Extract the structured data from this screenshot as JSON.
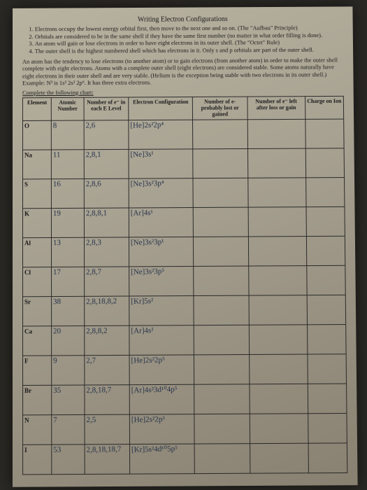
{
  "title": "Writing Electron Configurations",
  "rules": [
    "Electrons occupy the lowest energy orbital first, then move to the next one and so on. (The \"Aufbau\" Principle)",
    "Orbitals are considered to be in the same shell if they have the same first number (no matter in what order filling is done).",
    "An atom will gain or lose electrons in order to have eight electrons in its outer shell. (The \"Octet\" Rule)",
    "The outer shell is the highest numbered shell which has electrons in it. Only s and p orbitals are part of the outer shell."
  ],
  "paragraph": "An atom has the tendency to lose electrons (to another atom) or to gain electrons (from another atom) in order to make the outer shell complete with eight electrons. Atoms with a complete outer shell (eight electrons) are considered stable. Some atoms naturally have eight electrons in their outer shell and are very stable. (Helium is the exception being stable with two electrons in its outer shell.) Example: N³ is 1s² 2s² 2p⁶. It has three extra electrons.",
  "complete": "Complete the following chart:",
  "headers": {
    "element": "Element",
    "atomic": "Atomic Number",
    "num_e": "Number of e⁻ in each E Level",
    "config": "Electron Configuration",
    "lost": "Number of e- probably lost or gained",
    "left": "Number of e⁻ left after loss or gain",
    "charge": "Charge on Ion"
  },
  "rows": [
    {
      "el": "O",
      "at": "8",
      "ne": "2,6",
      "cfg": "[He]2s²2p⁴"
    },
    {
      "el": "Na",
      "at": "11",
      "ne": "2,8,1",
      "cfg": "[Ne]3s¹"
    },
    {
      "el": "S",
      "at": "16",
      "ne": "2,8,6",
      "cfg": "[Ne]3s²3p⁴"
    },
    {
      "el": "K",
      "at": "19",
      "ne": "2,8,8,1",
      "cfg": "[Ar]4s¹"
    },
    {
      "el": "Al",
      "at": "13",
      "ne": "2,8,3",
      "cfg": "[Ne]3s²3p¹"
    },
    {
      "el": "Cl",
      "at": "17",
      "ne": "2,8,7",
      "cfg": "[Ne]3s²3p⁵"
    },
    {
      "el": "Sr",
      "at": "38",
      "ne": "2,8,18,8,2",
      "cfg": "[Kr]5s²"
    },
    {
      "el": "Ca",
      "at": "20",
      "ne": "2,8,8,2",
      "cfg": "[Ar]4s²"
    },
    {
      "el": "F",
      "at": "9",
      "ne": "2,7",
      "cfg": "[He]2s²2p⁵"
    },
    {
      "el": "Br",
      "at": "35",
      "ne": "2,8,18,7",
      "cfg": "[Ar]4s²3d¹⁰4p⁵"
    },
    {
      "el": "N",
      "at": "7",
      "ne": "2,5",
      "cfg": "[He]2s²2p³"
    },
    {
      "el": "I",
      "at": "53",
      "ne": "2,8,18,18,7",
      "cfg": "[Kr]5s²4d¹⁰5p⁵"
    }
  ]
}
